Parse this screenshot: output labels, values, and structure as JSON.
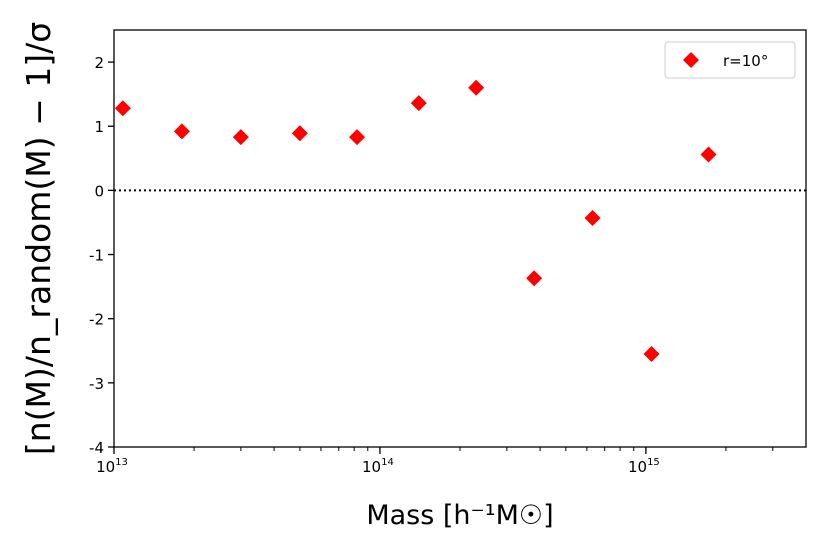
{
  "chart_data": {
    "type": "scatter",
    "xscale": "log",
    "xlim": [
      10000000000000.0,
      4000000000000000.0
    ],
    "ylim": [
      -4,
      2.5
    ],
    "xlabel": "Mass [h⁻¹M☉]",
    "ylabel": "[n(M)/n_random(M) − 1]/σ",
    "xtick_values": [
      10000000000000.0,
      100000000000000.0,
      1000000000000000.0
    ],
    "xtick_labels": [
      {
        "base": "10",
        "exp": "13"
      },
      {
        "base": "10",
        "exp": "14"
      },
      {
        "base": "10",
        "exp": "15"
      }
    ],
    "ytick_values": [
      -4,
      -3,
      -2,
      -1,
      0,
      1,
      2
    ],
    "ytick_labels": [
      "-4",
      "-3",
      "-2",
      "-1",
      "0",
      "1",
      "2"
    ],
    "reference_line": {
      "y": 0,
      "style": "dotted",
      "color": "#000000"
    },
    "legend": {
      "position": "top-right",
      "marker": "diamond"
    },
    "grid": false,
    "series": [
      {
        "name": "r=10°",
        "color": "#ff0000",
        "marker": "diamond",
        "points": [
          {
            "x": 10800000000000.0,
            "y": 1.28
          },
          {
            "x": 18000000000000.0,
            "y": 0.92
          },
          {
            "x": 30000000000000.0,
            "y": 0.83
          },
          {
            "x": 50000000000000.0,
            "y": 0.89
          },
          {
            "x": 82000000000000.0,
            "y": 0.83
          },
          {
            "x": 140000000000000.0,
            "y": 1.36
          },
          {
            "x": 230000000000000.0,
            "y": 1.6
          },
          {
            "x": 380000000000000.0,
            "y": -1.37
          },
          {
            "x": 630000000000000.0,
            "y": -0.43
          },
          {
            "x": 1050000000000000.0,
            "y": -2.55
          },
          {
            "x": 1720000000000000.0,
            "y": 0.56
          }
        ]
      }
    ]
  }
}
